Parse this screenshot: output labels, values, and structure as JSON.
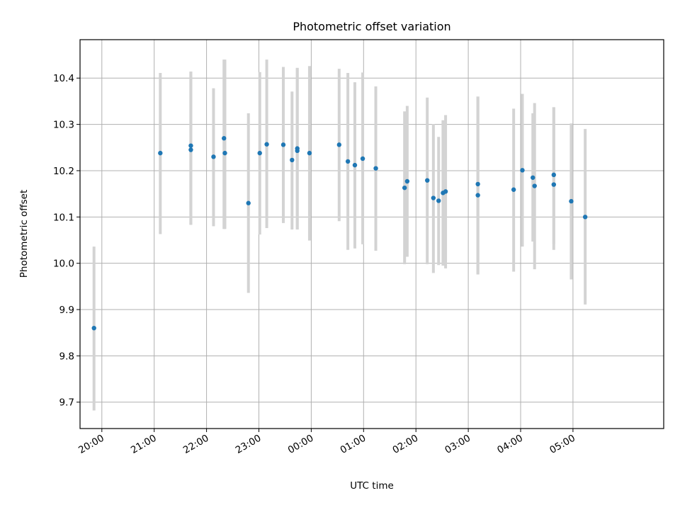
{
  "chart_data": {
    "type": "scatter",
    "title": "Photometric offset variation",
    "xlabel": "UTC time",
    "ylabel": "Photometric offset",
    "x_axis": "time",
    "grid": true,
    "xlim": [
      "19:35",
      "06:44"
    ],
    "ylim": [
      9.643,
      10.483
    ],
    "xticks": [
      "20:00",
      "21:00",
      "22:00",
      "23:00",
      "00:00",
      "01:00",
      "02:00",
      "03:00",
      "04:00",
      "05:00"
    ],
    "yticks": [
      "9.7",
      "9.8",
      "9.9",
      "10.0",
      "10.1",
      "10.2",
      "10.3",
      "10.4"
    ],
    "colors": {
      "point": "#1f77b4",
      "errorbar": "#d3d3d3"
    },
    "series": [
      {
        "points": [
          {
            "time": "19:51",
            "y": 9.86,
            "low": 9.682,
            "high": 10.036
          },
          {
            "time": "21:07",
            "y": 10.238,
            "low": 10.063,
            "high": 10.411
          },
          {
            "time": "21:42",
            "y": 10.245,
            "low": 10.083,
            "high": 10.414
          },
          {
            "time": "21:42",
            "y": 10.254,
            "low": 10.083,
            "high": 10.414
          },
          {
            "time": "22:08",
            "y": 10.23,
            "low": 10.08,
            "high": 10.378
          },
          {
            "time": "22:20",
            "y": 10.27,
            "low": 10.074,
            "high": 10.44
          },
          {
            "time": "22:21",
            "y": 10.238,
            "low": 10.074,
            "high": 10.44
          },
          {
            "time": "22:48",
            "y": 10.13,
            "low": 9.936,
            "high": 10.324
          },
          {
            "time": "23:01",
            "y": 10.238,
            "low": 10.062,
            "high": 10.413
          },
          {
            "time": "23:09",
            "y": 10.257,
            "low": 10.076,
            "high": 10.44
          },
          {
            "time": "23:28",
            "y": 10.256,
            "low": 10.087,
            "high": 10.424
          },
          {
            "time": "23:38",
            "y": 10.223,
            "low": 10.073,
            "high": 10.371
          },
          {
            "time": "23:44",
            "y": 10.248,
            "low": 10.073,
            "high": 10.422
          },
          {
            "time": "23:44",
            "y": 10.243,
            "low": 10.073,
            "high": 10.422
          },
          {
            "time": "23:58",
            "y": 10.238,
            "low": 10.049,
            "high": 10.426
          },
          {
            "time": "00:32",
            "y": 10.256,
            "low": 10.091,
            "high": 10.42
          },
          {
            "time": "00:42",
            "y": 10.22,
            "low": 10.029,
            "high": 10.411
          },
          {
            "time": "00:50",
            "y": 10.212,
            "low": 10.032,
            "high": 10.391
          },
          {
            "time": "00:59",
            "y": 10.226,
            "low": 10.041,
            "high": 10.412
          },
          {
            "time": "01:14",
            "y": 10.205,
            "low": 10.027,
            "high": 10.382
          },
          {
            "time": "01:47",
            "y": 10.163,
            "low": 9.998,
            "high": 10.328
          },
          {
            "time": "01:50",
            "y": 10.177,
            "low": 10.014,
            "high": 10.34
          },
          {
            "time": "02:13",
            "y": 10.179,
            "low": 9.998,
            "high": 10.358
          },
          {
            "time": "02:20",
            "y": 10.141,
            "low": 9.979,
            "high": 10.301
          },
          {
            "time": "02:26",
            "y": 10.135,
            "low": 9.996,
            "high": 10.273
          },
          {
            "time": "02:31",
            "y": 10.152,
            "low": 9.995,
            "high": 10.309
          },
          {
            "time": "02:34",
            "y": 10.155,
            "low": 9.989,
            "high": 10.32
          },
          {
            "time": "03:11",
            "y": 10.171,
            "low": 9.976,
            "high": 10.36
          },
          {
            "time": "03:11",
            "y": 10.147,
            "low": 9.976,
            "high": 10.36
          },
          {
            "time": "03:52",
            "y": 10.159,
            "low": 9.982,
            "high": 10.334
          },
          {
            "time": "04:02",
            "y": 10.201,
            "low": 10.036,
            "high": 10.366
          },
          {
            "time": "04:14",
            "y": 10.185,
            "low": 10.047,
            "high": 10.324
          },
          {
            "time": "04:16",
            "y": 10.167,
            "low": 9.987,
            "high": 10.346
          },
          {
            "time": "04:38",
            "y": 10.191,
            "low": 10.042,
            "high": 10.337
          },
          {
            "time": "04:38",
            "y": 10.17,
            "low": 10.029,
            "high": 10.337
          },
          {
            "time": "04:58",
            "y": 10.134,
            "low": 9.965,
            "high": 10.302
          },
          {
            "time": "05:14",
            "y": 10.1,
            "low": 9.911,
            "high": 10.29
          }
        ]
      }
    ]
  }
}
